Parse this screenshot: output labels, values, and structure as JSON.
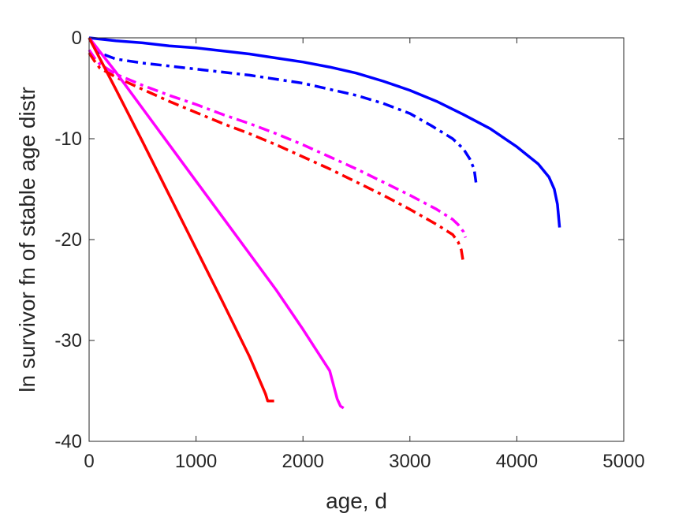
{
  "chart_data": {
    "type": "line",
    "title": "",
    "xlabel": "age, d",
    "ylabel": "ln survivor fn of stable age distr",
    "xlim": [
      0,
      5000
    ],
    "ylim": [
      -40,
      0
    ],
    "xticks": [
      "0",
      "1000",
      "2000",
      "3000",
      "4000",
      "5000"
    ],
    "yticks": [
      "0",
      "-10",
      "-20",
      "-30",
      "-40"
    ],
    "xtick_values": [
      0,
      1000,
      2000,
      3000,
      4000,
      5000
    ],
    "ytick_values": [
      0,
      -10,
      -20,
      -30,
      -40
    ],
    "grid": false,
    "legend": "none",
    "series": [
      {
        "color": "#0000ff",
        "style": "solid",
        "x": [
          0,
          250,
          500,
          750,
          1000,
          1250,
          1500,
          1750,
          2000,
          2250,
          2500,
          2750,
          3000,
          3250,
          3500,
          3750,
          4000,
          4200,
          4300,
          4350,
          4380,
          4400
        ],
        "y": [
          0,
          -0.3,
          -0.5,
          -0.8,
          -1.0,
          -1.3,
          -1.6,
          -2.0,
          -2.4,
          -2.9,
          -3.5,
          -4.3,
          -5.2,
          -6.3,
          -7.6,
          -9.0,
          -10.8,
          -12.5,
          -13.8,
          -15.0,
          -16.5,
          -18.8
        ]
      },
      {
        "color": "#0000ff",
        "style": "dashdot",
        "x": [
          0,
          50,
          100,
          250,
          500,
          750,
          1000,
          1250,
          1500,
          1750,
          2000,
          2250,
          2500,
          2750,
          3000,
          3200,
          3400,
          3500,
          3560,
          3600,
          3620
        ],
        "y": [
          0,
          -1.0,
          -1.5,
          -2.1,
          -2.5,
          -2.8,
          -3.1,
          -3.4,
          -3.7,
          -4.1,
          -4.5,
          -5.1,
          -5.7,
          -6.5,
          -7.5,
          -8.7,
          -10.0,
          -11.0,
          -12.0,
          -13.0,
          -14.5
        ]
      },
      {
        "color": "#ff00ff",
        "style": "dashdot",
        "x": [
          0,
          50,
          100,
          250,
          500,
          750,
          1000,
          1250,
          1500,
          1750,
          2000,
          2250,
          2500,
          2750,
          3000,
          3250,
          3400,
          3450,
          3500,
          3520
        ],
        "y": [
          -1.2,
          -2.0,
          -2.6,
          -3.6,
          -4.7,
          -5.7,
          -6.6,
          -7.6,
          -8.5,
          -9.5,
          -10.6,
          -11.8,
          -13.0,
          -14.3,
          -15.6,
          -17.0,
          -18.0,
          -18.5,
          -19.2,
          -19.8
        ]
      },
      {
        "color": "#ff0000",
        "style": "dashdot",
        "x": [
          0,
          50,
          100,
          250,
          500,
          750,
          1000,
          1250,
          1500,
          1750,
          2000,
          2250,
          2500,
          2750,
          3000,
          3250,
          3400,
          3450,
          3480,
          3500
        ],
        "y": [
          -1.5,
          -2.3,
          -3.0,
          -3.9,
          -5.1,
          -6.3,
          -7.4,
          -8.5,
          -9.5,
          -10.6,
          -11.8,
          -13.0,
          -14.3,
          -15.6,
          -17.0,
          -18.5,
          -19.5,
          -20.2,
          -21.0,
          -22.3
        ]
      },
      {
        "color": "#ff00ff",
        "style": "solid",
        "x": [
          0,
          250,
          500,
          750,
          1000,
          1250,
          1500,
          1750,
          2000,
          2250,
          2320,
          2350,
          2380
        ],
        "y": [
          0,
          -3.4,
          -7.0,
          -10.6,
          -14.2,
          -17.8,
          -21.4,
          -25.0,
          -28.9,
          -33.0,
          -35.8,
          -36.5,
          -36.7
        ]
      },
      {
        "color": "#ff0000",
        "style": "solid",
        "x": [
          0,
          250,
          500,
          750,
          1000,
          1250,
          1500,
          1650,
          1670,
          1700,
          1730
        ],
        "y": [
          0,
          -5.1,
          -10.3,
          -15.6,
          -20.9,
          -26.2,
          -31.6,
          -35.3,
          -36.0,
          -36.0,
          -36.0
        ]
      }
    ]
  }
}
